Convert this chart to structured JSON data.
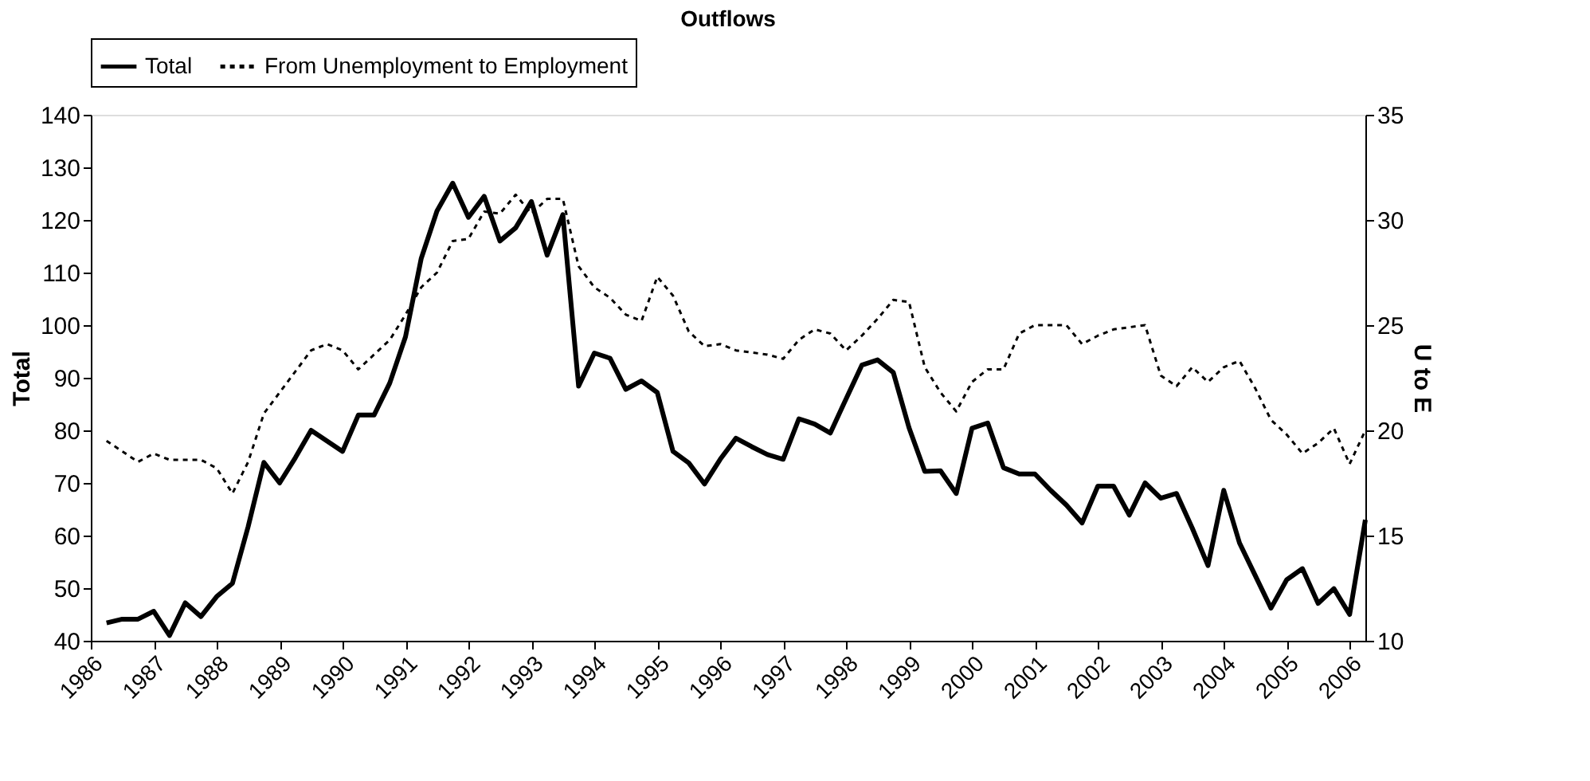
{
  "chart_data": {
    "type": "line",
    "title": "Outflows",
    "ylabel": "Total",
    "y2label": "U to E",
    "x": [
      1986.25,
      1986.5,
      1986.75,
      1987,
      1987.25,
      1987.5,
      1987.75,
      1988,
      1988.25,
      1988.5,
      1988.75,
      1989,
      1989.25,
      1989.5,
      1989.75,
      1990,
      1990.25,
      1990.5,
      1990.75,
      1991,
      1991.25,
      1991.5,
      1991.75,
      1992,
      1992.25,
      1992.5,
      1992.75,
      1993,
      1993.25,
      1993.5,
      1993.75,
      1994,
      1994.25,
      1994.5,
      1994.75,
      1995,
      1995.25,
      1995.5,
      1995.75,
      1996,
      1996.25,
      1996.5,
      1996.75,
      1997,
      1997.25,
      1997.5,
      1997.75,
      1998,
      1998.25,
      1998.5,
      1998.75,
      1999,
      1999.25,
      1999.5,
      1999.75,
      2000,
      2000.25,
      2000.5,
      2000.75,
      2001,
      2001.25,
      2001.5,
      2001.75,
      2002,
      2002.25,
      2002.5,
      2002.75,
      2003,
      2003.25,
      2003.5,
      2003.75,
      2004,
      2004.25,
      2004.5,
      2004.75,
      2005,
      2005.25,
      2005.5,
      2005.75,
      2006,
      2006.25
    ],
    "series": [
      {
        "name": "Total",
        "color": "#000000",
        "line_style": "solid",
        "axis": "y",
        "values": [
          43.4,
          44.1,
          44.1,
          45.6,
          41,
          47.2,
          44.6,
          48.4,
          50.9,
          61.7,
          73.9,
          70,
          74.8,
          80,
          78,
          76,
          82.9,
          82.9,
          89,
          97.8,
          112.7,
          121.7,
          127,
          120.5,
          124.5,
          116,
          118.5,
          123.5,
          113.3,
          121,
          88.4,
          94.7,
          93.7,
          87.8,
          89.4,
          87.2,
          76,
          73.8,
          69.8,
          74.5,
          78.5,
          76.9,
          75.4,
          74.5,
          82.2,
          81.2,
          79.5,
          86,
          92.4,
          93.4,
          91,
          80.5,
          72.2,
          72.3,
          68,
          80.4,
          81.4,
          72.9,
          71.7,
          71.7,
          68.6,
          65.8,
          62.4,
          69.4,
          69.4,
          63.9,
          70,
          67.1,
          68,
          61.4,
          54.3,
          68.6,
          58.6,
          52.4,
          46.2,
          51.6,
          53.7,
          47.1,
          49.9,
          45,
          63
        ]
      },
      {
        "name": "From Unemployment to Employment",
        "color": "#000000",
        "line_style": "dashed",
        "axis": "y2",
        "values": [
          19.5,
          19,
          18.5,
          18.9,
          18.6,
          18.6,
          18.6,
          18.2,
          17,
          18.5,
          20.8,
          21.8,
          22.8,
          23.8,
          24.1,
          23.8,
          22.9,
          23.6,
          24.3,
          25.5,
          26.8,
          27.5,
          29,
          29.1,
          30.4,
          30.3,
          31.2,
          30.3,
          31,
          31,
          27.8,
          26.8,
          26.3,
          25.5,
          25.2,
          27.3,
          26.4,
          24.7,
          24,
          24.1,
          23.8,
          23.7,
          23.6,
          23.4,
          24.3,
          24.8,
          24.6,
          23.8,
          24.5,
          25.3,
          26.2,
          26.1,
          23,
          21.8,
          20.9,
          22.3,
          22.9,
          22.9,
          24.6,
          25,
          25,
          25,
          24.1,
          24.5,
          24.8,
          24.9,
          25,
          22.6,
          22.1,
          23,
          22.3,
          23,
          23.3,
          22,
          20.5,
          19.8,
          18.9,
          19.4,
          20.1,
          18.4,
          20
        ]
      }
    ],
    "xlim": [
      1986,
      2006.25
    ],
    "xticks": [
      1986,
      1987,
      1988,
      1989,
      1990,
      1991,
      1992,
      1993,
      1994,
      1995,
      1996,
      1997,
      1998,
      1999,
      2000,
      2001,
      2002,
      2003,
      2004,
      2005,
      2006
    ],
    "ylim": [
      40,
      140
    ],
    "yticks": [
      40,
      50,
      60,
      70,
      80,
      90,
      100,
      110,
      120,
      130,
      140
    ],
    "y2lim": [
      10,
      35
    ],
    "y2ticks": [
      10,
      15,
      20,
      25,
      30,
      35
    ],
    "legend": "top",
    "grid": false,
    "marker": "none"
  }
}
